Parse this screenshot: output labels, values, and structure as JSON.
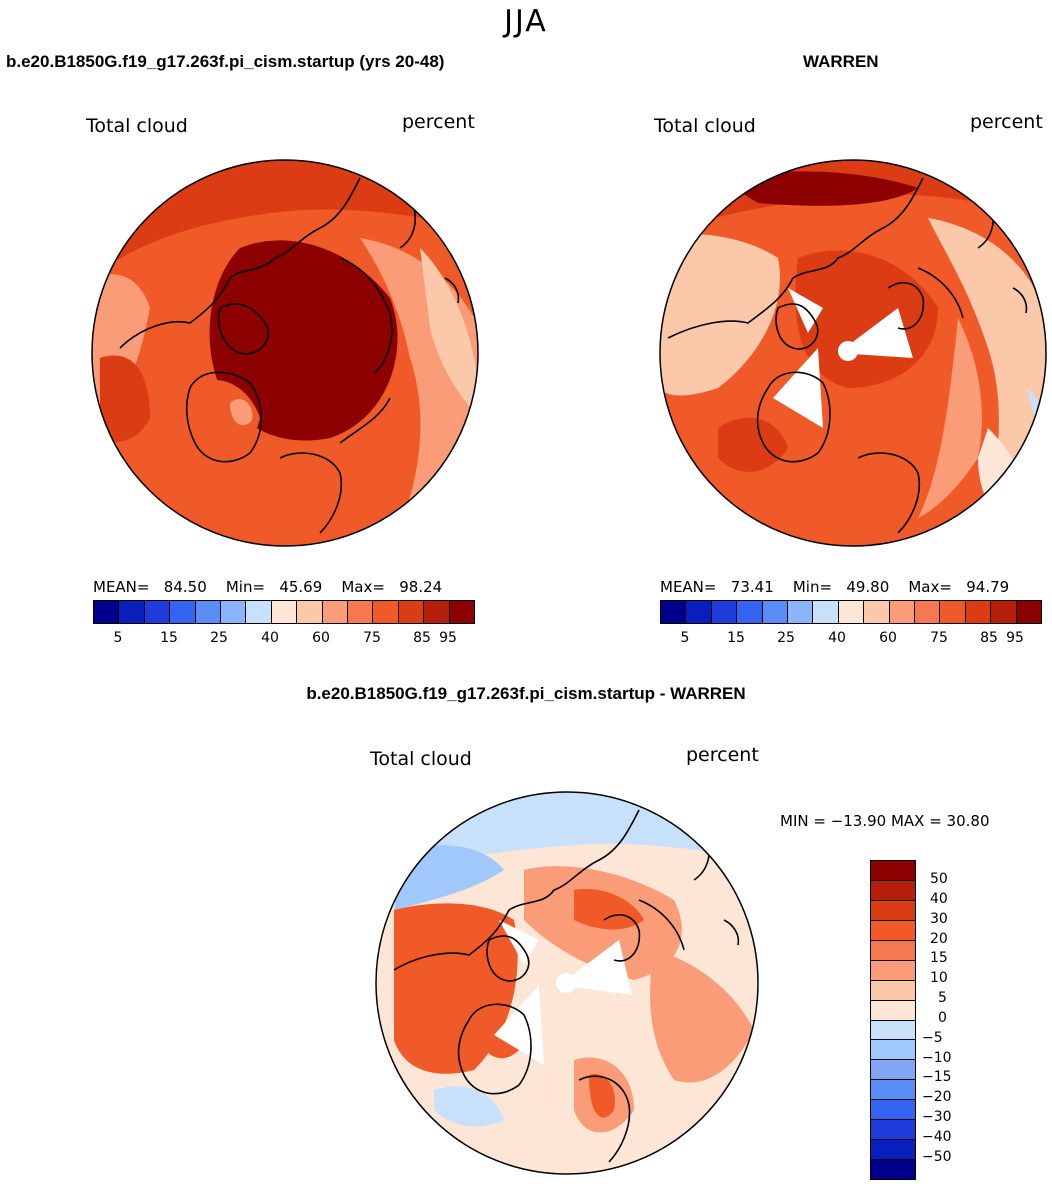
{
  "season": "JJA",
  "panels": [
    {
      "title": "b.e20.B1850G.f19_g17.263f.pi_cism.startup (yrs 20-48)",
      "variable": "Total cloud",
      "units": "percent",
      "mean_label": "MEAN=",
      "mean": "84.50",
      "min_label": "Min=",
      "min": "45.69",
      "max_label": "Max=",
      "max": "98.24"
    },
    {
      "title": "WARREN",
      "variable": "Total cloud",
      "units": "percent",
      "mean_label": "MEAN=",
      "mean": "73.41",
      "min_label": "Min=",
      "min": "49.80",
      "max_label": "Max=",
      "max": "94.79"
    }
  ],
  "diff_panel": {
    "title": "b.e20.B1850G.f19_g17.263f.pi_cism.startup - WARREN",
    "variable": "Total cloud",
    "units": "percent",
    "minmax_text": "MIN = −13.90 MAX =   30.80"
  },
  "colorbar_abs": {
    "colors": [
      "#00008c",
      "#0a1ebe",
      "#1e3cdc",
      "#3264f0",
      "#5a8cf5",
      "#8cb4fa",
      "#c8e1fa",
      "#fde6d6",
      "#fcc8aa",
      "#fa9c78",
      "#f57850",
      "#f05a28",
      "#dc3c14",
      "#b41e0a",
      "#8c0000"
    ],
    "tick_labels": [
      "5",
      "15",
      "25",
      "40",
      "60",
      "75",
      "85",
      "95"
    ]
  },
  "colorbar_diff": {
    "colors": [
      "#8c0000",
      "#b41e0a",
      "#dc3c14",
      "#f05a28",
      "#f57850",
      "#fa9c78",
      "#fcc8aa",
      "#fde6d6",
      "#c8e1fa",
      "#a0c8fa",
      "#82a5f5",
      "#5a8cf5",
      "#3264f0",
      "#1e3cdc",
      "#0a1ebe",
      "#00008c"
    ],
    "tick_labels": [
      "50",
      "40",
      "30",
      "20",
      "15",
      "10",
      "5",
      "0",
      "−5",
      "−10",
      "−15",
      "−20",
      "−30",
      "−40",
      "−50"
    ]
  },
  "colors": {
    "deep_red": "#8c0000",
    "red": "#dc3c14",
    "orange": "#f05a28",
    "light_orange": "#fa9c78",
    "peach": "#fcc8aa",
    "cream": "#fde6d6",
    "light_blue": "#c8e1fa"
  }
}
